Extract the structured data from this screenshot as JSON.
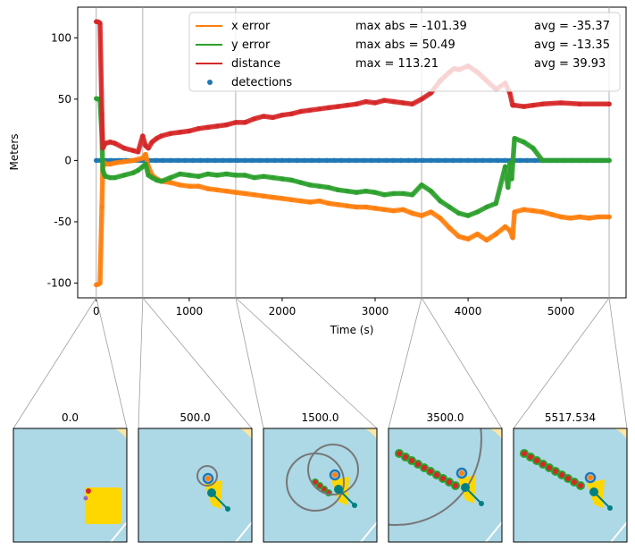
{
  "chart_data": [
    {
      "type": "line",
      "xlabel": "Time (s)",
      "ylabel": "Meters",
      "xlim": [
        -200,
        5700
      ],
      "ylim": [
        -112,
        125
      ],
      "x_ticks": [
        0,
        1000,
        2000,
        3000,
        4000,
        5000
      ],
      "y_ticks": [
        -100,
        -50,
        0,
        50,
        100
      ],
      "grid": false,
      "legend": {
        "placement": "top-right",
        "entries": [
          {
            "label": "x error",
            "col2": "max abs = -101.39",
            "col3": "avg = -35.37",
            "marker": "line",
            "color": "#ff7f0e"
          },
          {
            "label": "y error",
            "col2": "max abs = 50.49",
            "col3": "avg = -13.35",
            "marker": "line",
            "color": "#2ca02c"
          },
          {
            "label": "distance",
            "col2": "max = 113.21",
            "col3": "avg = 39.93",
            "marker": "line",
            "color": "#d62728"
          },
          {
            "label": "detections",
            "col2": "",
            "col3": "",
            "marker": "dot",
            "color": "#1f77b4"
          }
        ]
      },
      "vlines": [
        0,
        500,
        1500,
        3500,
        5517.534
      ],
      "series": [
        {
          "name": "x error",
          "color": "#ff7f0e",
          "x": [
            0,
            20,
            40,
            60,
            70,
            90,
            100,
            150,
            200,
            300,
            400,
            500,
            530,
            560,
            600,
            650,
            700,
            800,
            900,
            1000,
            1100,
            1200,
            1300,
            1400,
            1500,
            1600,
            1700,
            1800,
            1900,
            2000,
            2100,
            2200,
            2300,
            2400,
            2500,
            2600,
            2700,
            2800,
            2900,
            3000,
            3100,
            3200,
            3300,
            3400,
            3500,
            3600,
            3700,
            3800,
            3900,
            3950,
            4000,
            4100,
            4200,
            4300,
            4400,
            4450,
            4480,
            4500,
            4600,
            4700,
            4800,
            4900,
            5000,
            5100,
            5200,
            5300,
            5400,
            5518
          ],
          "y": [
            -101.39,
            -101,
            -100,
            -38,
            -5,
            -2,
            -3,
            -3,
            -2,
            -1,
            0,
            2,
            5,
            -5,
            -12,
            -15,
            -17,
            -18,
            -20,
            -21,
            -21,
            -23,
            -24,
            -25,
            -26,
            -27,
            -28,
            -29,
            -30,
            -31,
            -32,
            -33,
            -34,
            -33,
            -35,
            -36,
            -37,
            -38,
            -38,
            -39,
            -40,
            -41,
            -40,
            -43,
            -45,
            -42,
            -47,
            -55,
            -62,
            -63,
            -64,
            -60,
            -65,
            -60,
            -54,
            -57,
            -63,
            -42,
            -40,
            -41,
            -42,
            -44,
            -46,
            -47,
            -46,
            -47,
            -46,
            -46
          ]
        },
        {
          "name": "y error",
          "color": "#2ca02c",
          "x": [
            0,
            20,
            40,
            60,
            70,
            90,
            100,
            150,
            200,
            300,
            400,
            450,
            500,
            530,
            560,
            600,
            650,
            700,
            800,
            900,
            1000,
            1100,
            1200,
            1300,
            1400,
            1500,
            1600,
            1700,
            1800,
            1900,
            2000,
            2100,
            2200,
            2300,
            2400,
            2500,
            2600,
            2700,
            2800,
            2900,
            3000,
            3100,
            3200,
            3300,
            3400,
            3500,
            3600,
            3700,
            3800,
            3900,
            4000,
            4100,
            4200,
            4300,
            4400,
            4430,
            4450,
            4470,
            4500,
            4600,
            4700,
            4800,
            5000,
            5200,
            5518
          ],
          "y": [
            50.49,
            50,
            50,
            20,
            -8,
            -12,
            -13,
            -14,
            -14,
            -12,
            -10,
            -8,
            -5,
            -3,
            -12,
            -14,
            -16,
            -17,
            -14,
            -11,
            -12,
            -13,
            -11,
            -12,
            -11,
            -12,
            -12,
            -14,
            -13,
            -14,
            -15,
            -16,
            -18,
            -20,
            -21,
            -22,
            -24,
            -25,
            -26,
            -25,
            -26,
            -28,
            -27,
            -27,
            -28,
            -20,
            -25,
            -33,
            -38,
            -43,
            -45,
            -42,
            -38,
            -35,
            -5,
            -22,
            -2,
            -15,
            18,
            15,
            10,
            0,
            0,
            0,
            0
          ]
        },
        {
          "name": "distance",
          "color": "#d62728",
          "x": [
            0,
            20,
            40,
            60,
            70,
            90,
            100,
            150,
            200,
            300,
            400,
            450,
            500,
            530,
            560,
            600,
            650,
            700,
            800,
            900,
            1000,
            1100,
            1200,
            1300,
            1400,
            1500,
            1600,
            1700,
            1800,
            1900,
            2000,
            2100,
            2200,
            2300,
            2400,
            2500,
            2600,
            2700,
            2800,
            2900,
            3000,
            3100,
            3200,
            3300,
            3400,
            3500,
            3600,
            3700,
            3800,
            3850,
            3900,
            4000,
            4100,
            4200,
            4300,
            4400,
            4450,
            4480,
            4500,
            4600,
            4700,
            4800,
            5000,
            5200,
            5518
          ],
          "y": [
            113.21,
            113,
            112,
            38,
            10,
            13,
            14,
            15,
            14,
            10,
            8,
            7,
            20,
            12,
            10,
            15,
            18,
            20,
            22,
            23,
            24,
            26,
            27,
            28,
            29,
            31,
            31,
            34,
            36,
            35,
            37,
            38,
            40,
            41,
            42,
            43,
            44,
            45,
            46,
            48,
            47,
            49,
            48,
            47,
            46,
            50,
            55,
            65,
            72,
            75,
            74,
            77,
            72,
            65,
            58,
            63,
            55,
            45,
            45,
            44,
            45,
            46,
            47,
            46,
            46
          ]
        },
        {
          "name": "detections",
          "color": "#1f77b4",
          "marker": "dot",
          "x": [
            0,
            5517.534
          ],
          "y": [
            0,
            0
          ]
        }
      ]
    },
    {
      "type": "map",
      "panels": [
        {
          "title": "0.0"
        },
        {
          "title": "500.0"
        },
        {
          "title": "1500.0"
        },
        {
          "title": "3500.0"
        },
        {
          "title": "5517.534"
        }
      ]
    }
  ]
}
